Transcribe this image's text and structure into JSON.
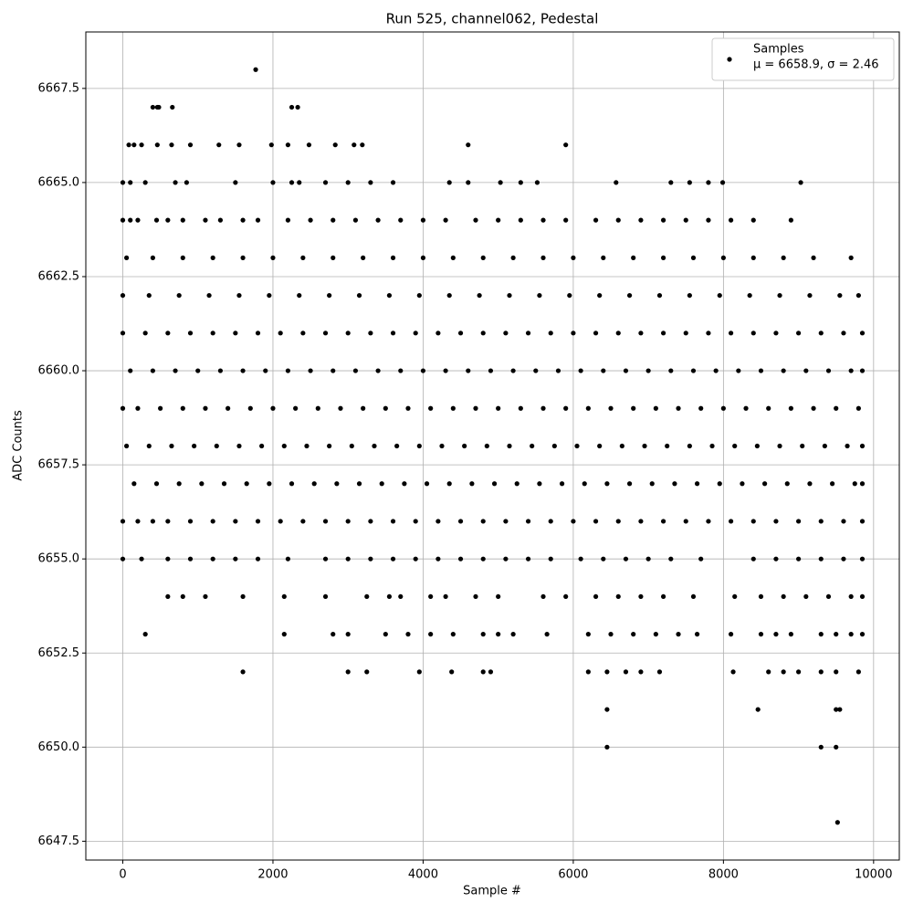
{
  "chart_data": {
    "type": "scatter",
    "title": "Run 525, channel062, Pedestal",
    "x_label": "Sample #",
    "y_label": "ADC Counts",
    "legend_note": "μ = 6658.9, σ = 2.46",
    "legend_position": "upper right",
    "grid": true,
    "xlim": [
      -492.5,
      10342.5
    ],
    "ylim": [
      6647,
      6669
    ],
    "xticks": [
      0,
      2000,
      4000,
      6000,
      8000,
      10000
    ],
    "yticks": [
      6647.5,
      {
        "value": 6650,
        "label": "6650.0"
      },
      6652.5,
      {
        "value": 6655,
        "label": "6655.0"
      },
      6657.5,
      {
        "value": 6660,
        "label": "6660.0"
      },
      6662.5,
      {
        "value": 6665,
        "label": "6665.0"
      },
      6667.5
    ],
    "x": [
      1770,
      400,
      460,
      480,
      660,
      2250,
      2330,
      80,
      150,
      250,
      460,
      650,
      900,
      1280,
      1550,
      1980,
      2200,
      2480,
      2830,
      3080,
      3190,
      4600,
      5900,
      0,
      100,
      300,
      700,
      850,
      1500,
      2000,
      2250,
      2350,
      2700,
      3000,
      3300,
      3600,
      4350,
      4600,
      5030,
      5300,
      5520,
      6570,
      7300,
      7550,
      7800,
      7990,
      9030,
      0,
      100,
      200,
      450,
      600,
      800,
      1100,
      1300,
      1600,
      1800,
      2200,
      2500,
      2800,
      3100,
      3400,
      3700,
      4000,
      4300,
      4700,
      5000,
      5300,
      5600,
      5900,
      6300,
      6600,
      6900,
      7200,
      7500,
      7800,
      8100,
      8400,
      8900,
      50,
      400,
      800,
      1200,
      1600,
      2000,
      2400,
      2800,
      3200,
      3600,
      4000,
      4400,
      4800,
      5200,
      5600,
      6000,
      6400,
      6800,
      7200,
      7600,
      8000,
      8400,
      8800,
      9200,
      9700,
      0,
      350,
      750,
      1150,
      1550,
      1950,
      2350,
      2750,
      3150,
      3550,
      3950,
      4350,
      4750,
      5150,
      5550,
      5950,
      6350,
      6750,
      7150,
      7550,
      7950,
      8350,
      8750,
      9150,
      9550,
      9800,
      0,
      300,
      600,
      900,
      1200,
      1500,
      1800,
      2100,
      2400,
      2700,
      3000,
      3300,
      3600,
      3900,
      4200,
      4500,
      4800,
      5100,
      5400,
      5700,
      6000,
      6300,
      6600,
      6900,
      7200,
      7500,
      7800,
      8100,
      8400,
      8700,
      9000,
      9300,
      9600,
      9850,
      100,
      400,
      700,
      1000,
      1300,
      1600,
      1900,
      2200,
      2500,
      2800,
      3100,
      3400,
      3700,
      4000,
      4300,
      4600,
      4900,
      5200,
      5500,
      5800,
      6100,
      6400,
      6700,
      7000,
      7300,
      7600,
      7900,
      8200,
      8500,
      8800,
      9100,
      9400,
      9700,
      9850,
      0,
      200,
      500,
      800,
      1100,
      1400,
      1700,
      2000,
      2300,
      2600,
      2900,
      3200,
      3500,
      3800,
      4100,
      4400,
      4700,
      5000,
      5300,
      5600,
      5900,
      6200,
      6500,
      6800,
      7100,
      7400,
      7700,
      8000,
      8300,
      8600,
      8900,
      9200,
      9500,
      9800,
      50,
      350,
      650,
      950,
      1250,
      1550,
      1850,
      2150,
      2450,
      2750,
      3050,
      3350,
      3650,
      3950,
      4250,
      4550,
      4850,
      5150,
      5450,
      5750,
      6050,
      6350,
      6650,
      6950,
      7250,
      7550,
      7850,
      8150,
      8450,
      8750,
      9050,
      9350,
      9650,
      9850,
      150,
      450,
      750,
      1050,
      1350,
      1650,
      1950,
      2250,
      2550,
      2850,
      3150,
      3450,
      3750,
      4050,
      4350,
      4650,
      4950,
      5250,
      5550,
      5850,
      6150,
      6450,
      6750,
      7050,
      7350,
      7650,
      7950,
      8250,
      8550,
      8850,
      9150,
      9450,
      9750,
      9850,
      0,
      200,
      400,
      600,
      900,
      1200,
      1500,
      1800,
      2100,
      2400,
      2700,
      3000,
      3300,
      3600,
      3900,
      4200,
      4500,
      4800,
      5100,
      5400,
      5700,
      6000,
      6300,
      6600,
      6900,
      7200,
      7500,
      7800,
      8100,
      8400,
      8700,
      9000,
      9300,
      9600,
      9850,
      0,
      250,
      600,
      900,
      1200,
      1500,
      1800,
      2200,
      2700,
      3000,
      3300,
      3600,
      3900,
      4200,
      4500,
      4800,
      5100,
      5400,
      5700,
      6100,
      6400,
      6700,
      7000,
      7300,
      7700,
      8400,
      8700,
      9000,
      9300,
      9600,
      9850,
      600,
      800,
      1100,
      1600,
      2150,
      2700,
      3250,
      3550,
      3700,
      4100,
      4300,
      4700,
      5000,
      5600,
      5900,
      6300,
      6600,
      6900,
      7200,
      7600,
      8150,
      8500,
      8800,
      9100,
      9400,
      9700,
      9850,
      300,
      2150,
      2800,
      3000,
      3500,
      3800,
      4100,
      4400,
      4800,
      5000,
      5200,
      5650,
      6200,
      6500,
      6800,
      7100,
      7400,
      7650,
      8100,
      8500,
      8700,
      8900,
      9300,
      9500,
      9700,
      9850,
      1600,
      3000,
      3250,
      3950,
      4380,
      4800,
      4900,
      6200,
      6450,
      6700,
      6900,
      7150,
      8130,
      8600,
      8800,
      9000,
      9300,
      9500,
      9800,
      6450,
      8460,
      9500,
      9550,
      6450,
      9300,
      9500,
      9520
    ],
    "series": [
      {
        "name": "Samples",
        "color": "#000000",
        "values": [
          6668,
          6667,
          6667,
          6667,
          6667,
          6667,
          6667,
          6666,
          6666,
          6666,
          6666,
          6666,
          6666,
          6666,
          6666,
          6666,
          6666,
          6666,
          6666,
          6666,
          6666,
          6666,
          6666,
          6665,
          6665,
          6665,
          6665,
          6665,
          6665,
          6665,
          6665,
          6665,
          6665,
          6665,
          6665,
          6665,
          6665,
          6665,
          6665,
          6665,
          6665,
          6665,
          6665,
          6665,
          6665,
          6665,
          6665,
          6664,
          6664,
          6664,
          6664,
          6664,
          6664,
          6664,
          6664,
          6664,
          6664,
          6664,
          6664,
          6664,
          6664,
          6664,
          6664,
          6664,
          6664,
          6664,
          6664,
          6664,
          6664,
          6664,
          6664,
          6664,
          6664,
          6664,
          6664,
          6664,
          6664,
          6664,
          6664,
          6663,
          6663,
          6663,
          6663,
          6663,
          6663,
          6663,
          6663,
          6663,
          6663,
          6663,
          6663,
          6663,
          6663,
          6663,
          6663,
          6663,
          6663,
          6663,
          6663,
          6663,
          6663,
          6663,
          6663,
          6663,
          6662,
          6662,
          6662,
          6662,
          6662,
          6662,
          6662,
          6662,
          6662,
          6662,
          6662,
          6662,
          6662,
          6662,
          6662,
          6662,
          6662,
          6662,
          6662,
          6662,
          6662,
          6662,
          6662,
          6662,
          6662,
          6662,
          6661,
          6661,
          6661,
          6661,
          6661,
          6661,
          6661,
          6661,
          6661,
          6661,
          6661,
          6661,
          6661,
          6661,
          6661,
          6661,
          6661,
          6661,
          6661,
          6661,
          6661,
          6661,
          6661,
          6661,
          6661,
          6661,
          6661,
          6661,
          6661,
          6661,
          6661,
          6661,
          6661,
          6661,
          6660,
          6660,
          6660,
          6660,
          6660,
          6660,
          6660,
          6660,
          6660,
          6660,
          6660,
          6660,
          6660,
          6660,
          6660,
          6660,
          6660,
          6660,
          6660,
          6660,
          6660,
          6660,
          6660,
          6660,
          6660,
          6660,
          6660,
          6660,
          6660,
          6660,
          6660,
          6660,
          6660,
          6660,
          6659,
          6659,
          6659,
          6659,
          6659,
          6659,
          6659,
          6659,
          6659,
          6659,
          6659,
          6659,
          6659,
          6659,
          6659,
          6659,
          6659,
          6659,
          6659,
          6659,
          6659,
          6659,
          6659,
          6659,
          6659,
          6659,
          6659,
          6659,
          6659,
          6659,
          6659,
          6659,
          6659,
          6659,
          6658,
          6658,
          6658,
          6658,
          6658,
          6658,
          6658,
          6658,
          6658,
          6658,
          6658,
          6658,
          6658,
          6658,
          6658,
          6658,
          6658,
          6658,
          6658,
          6658,
          6658,
          6658,
          6658,
          6658,
          6658,
          6658,
          6658,
          6658,
          6658,
          6658,
          6658,
          6658,
          6658,
          6658,
          6657,
          6657,
          6657,
          6657,
          6657,
          6657,
          6657,
          6657,
          6657,
          6657,
          6657,
          6657,
          6657,
          6657,
          6657,
          6657,
          6657,
          6657,
          6657,
          6657,
          6657,
          6657,
          6657,
          6657,
          6657,
          6657,
          6657,
          6657,
          6657,
          6657,
          6657,
          6657,
          6657,
          6657,
          6656,
          6656,
          6656,
          6656,
          6656,
          6656,
          6656,
          6656,
          6656,
          6656,
          6656,
          6656,
          6656,
          6656,
          6656,
          6656,
          6656,
          6656,
          6656,
          6656,
          6656,
          6656,
          6656,
          6656,
          6656,
          6656,
          6656,
          6656,
          6656,
          6656,
          6656,
          6656,
          6656,
          6656,
          6656,
          6655,
          6655,
          6655,
          6655,
          6655,
          6655,
          6655,
          6655,
          6655,
          6655,
          6655,
          6655,
          6655,
          6655,
          6655,
          6655,
          6655,
          6655,
          6655,
          6655,
          6655,
          6655,
          6655,
          6655,
          6655,
          6655,
          6655,
          6655,
          6655,
          6655,
          6655,
          6654,
          6654,
          6654,
          6654,
          6654,
          6654,
          6654,
          6654,
          6654,
          6654,
          6654,
          6654,
          6654,
          6654,
          6654,
          6654,
          6654,
          6654,
          6654,
          6654,
          6654,
          6654,
          6654,
          6654,
          6654,
          6654,
          6654,
          6653,
          6653,
          6653,
          6653,
          6653,
          6653,
          6653,
          6653,
          6653,
          6653,
          6653,
          6653,
          6653,
          6653,
          6653,
          6653,
          6653,
          6653,
          6653,
          6653,
          6653,
          6653,
          6653,
          6653,
          6653,
          6653,
          6652,
          6652,
          6652,
          6652,
          6652,
          6652,
          6652,
          6652,
          6652,
          6652,
          6652,
          6652,
          6652,
          6652,
          6652,
          6652,
          6652,
          6652,
          6652,
          6651,
          6651,
          6651,
          6651,
          6650,
          6650,
          6650,
          6648
        ]
      }
    ]
  }
}
